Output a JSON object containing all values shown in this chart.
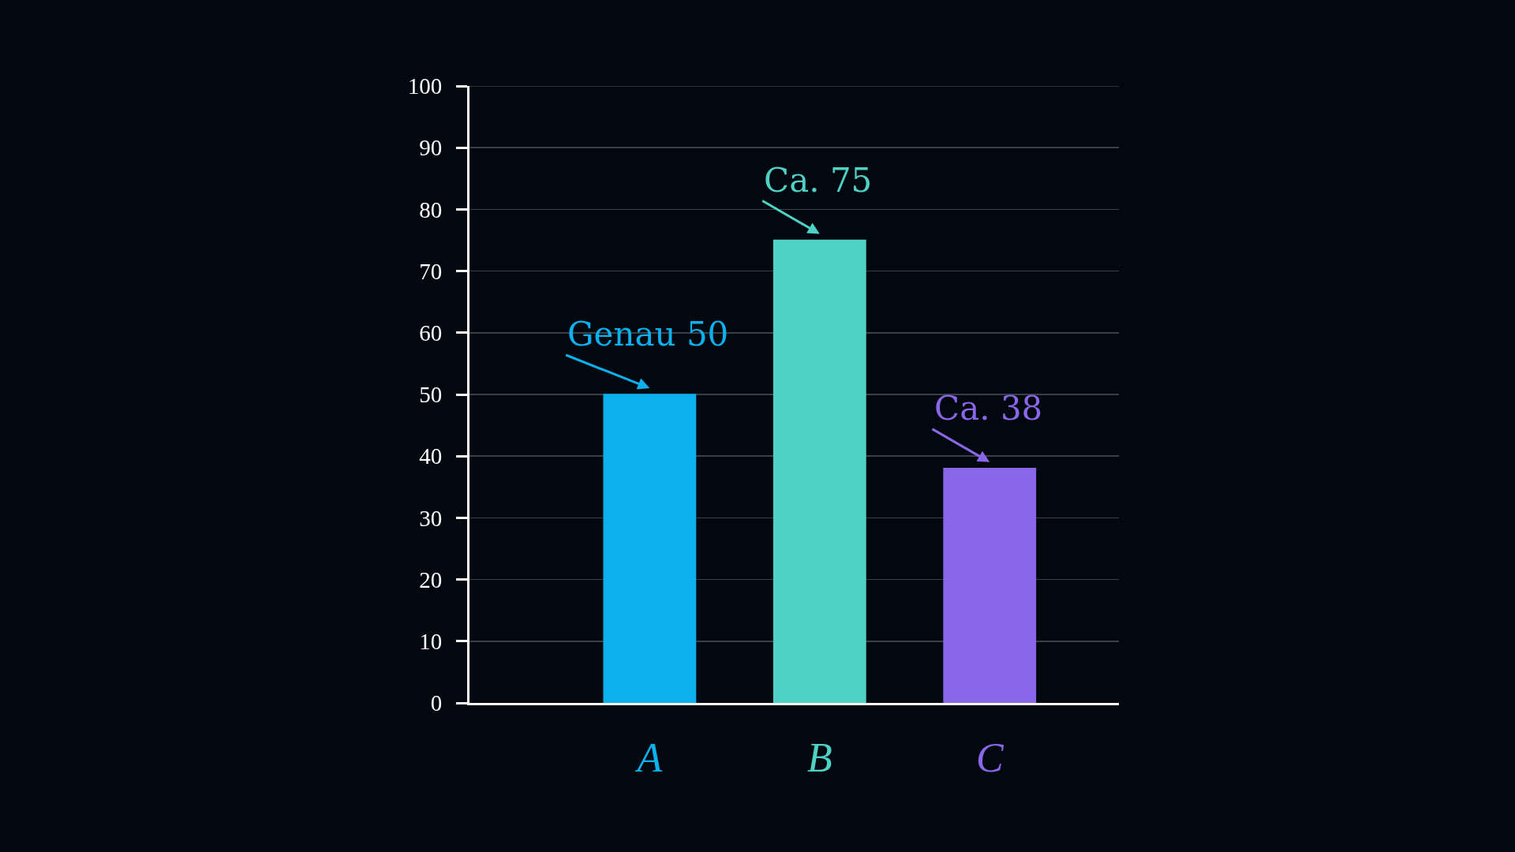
{
  "chart_data": {
    "type": "bar",
    "categories": [
      "A",
      "B",
      "C"
    ],
    "values": [
      50,
      75,
      38
    ],
    "colors": [
      "#0bb0ec",
      "#4fd1c5",
      "#8a67e8"
    ],
    "ylim": [
      0,
      100
    ],
    "yticks": [
      0,
      10,
      20,
      30,
      40,
      50,
      60,
      70,
      80,
      90,
      100
    ],
    "grid": "y",
    "annotations": [
      {
        "text": "Genau 50",
        "x": "A",
        "y": 50
      },
      {
        "text": "Ca. 75",
        "x": "B",
        "y": 75
      },
      {
        "text": "Ca. 38",
        "x": "C",
        "y": 38
      }
    ]
  }
}
